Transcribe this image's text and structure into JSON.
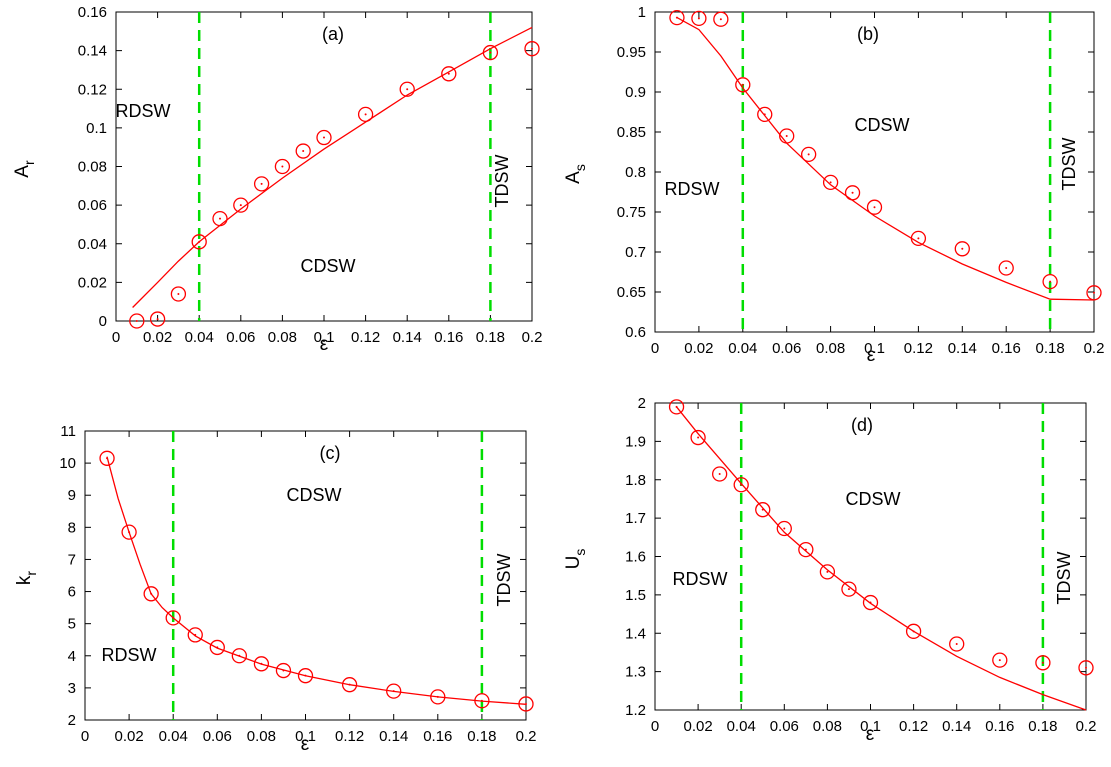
{
  "colors": {
    "data": "#ff0000",
    "boundary": "#00dd00",
    "axis": "#000000"
  },
  "chart_data": [
    {
      "type": "scatter",
      "panel": "(a)",
      "xlabel": "ε",
      "ylabel": "A",
      "ylabel_sub": "r",
      "xlim": [
        0,
        0.2
      ],
      "ylim": [
        0,
        0.16
      ],
      "xticks": [
        "0",
        "0.02",
        "0.04",
        "0.06",
        "0.08",
        "0.1",
        "0.12",
        "0.14",
        "0.16",
        "0.18",
        "0.2"
      ],
      "yticks": [
        "0",
        "0.02",
        "0.04",
        "0.06",
        "0.08",
        "0.1",
        "0.12",
        "0.14",
        "0.16"
      ],
      "boundaries": [
        0.04,
        0.18
      ],
      "regions": [
        {
          "label": "RDSW",
          "x": 0.02,
          "y": 0.1,
          "vertical": false
        },
        {
          "label": "CDSW",
          "x": 0.11,
          "y": 0.053,
          "vertical": false
        },
        {
          "label": "TDSW",
          "x": 0.19,
          "y": 0.094,
          "vertical": true
        }
      ],
      "series": [
        {
          "marker": "circle-dot",
          "x": [
            0.01,
            0.02,
            0.03,
            0.04,
            0.05,
            0.06,
            0.07,
            0.08,
            0.09,
            0.1,
            0.12,
            0.14,
            0.16,
            0.18,
            0.2
          ],
          "y": [
            0.0,
            0.001,
            0.014,
            0.041,
            0.053,
            0.06,
            0.071,
            0.08,
            0.088,
            0.095,
            0.107,
            0.12,
            0.128,
            0.139,
            0.141
          ]
        },
        {
          "marker": "line",
          "x": [
            0.008,
            0.02,
            0.03,
            0.04,
            0.06,
            0.08,
            0.1,
            0.12,
            0.14,
            0.16,
            0.18,
            0.2
          ],
          "y": [
            0.007,
            0.02,
            0.031,
            0.041,
            0.058,
            0.074,
            0.089,
            0.103,
            0.117,
            0.129,
            0.141,
            0.152
          ]
        }
      ]
    },
    {
      "type": "scatter",
      "panel": "(b)",
      "xlabel": "ε",
      "ylabel": "A",
      "ylabel_sub": "s",
      "xlim": [
        0,
        0.2
      ],
      "ylim": [
        0.6,
        1
      ],
      "xticks": [
        "0",
        "0.02",
        "0.04",
        "0.06",
        "0.08",
        "0.1",
        "0.12",
        "0.14",
        "0.16",
        "0.18",
        "0.2"
      ],
      "yticks": [
        "0.6",
        "0.65",
        "0.7",
        "0.75",
        "0.8",
        "0.85",
        "0.9",
        "0.95",
        "1"
      ],
      "boundaries": [
        0.04,
        0.18
      ],
      "regions": [
        {
          "label": "RDSW",
          "x": 0.015,
          "y": 0.778,
          "vertical": false
        },
        {
          "label": "CDSW",
          "x": 0.105,
          "y": 0.862,
          "vertical": false
        },
        {
          "label": "TDSW",
          "x": 0.193,
          "y": 0.818,
          "vertical": true
        }
      ],
      "series": [
        {
          "marker": "circle-dot",
          "x": [
            0.01,
            0.02,
            0.03,
            0.04,
            0.05,
            0.06,
            0.07,
            0.08,
            0.09,
            0.1,
            0.12,
            0.14,
            0.16,
            0.18,
            0.2
          ],
          "y": [
            0.993,
            0.992,
            0.991,
            0.909,
            0.872,
            0.845,
            0.822,
            0.787,
            0.774,
            0.756,
            0.717,
            0.704,
            0.68,
            0.663,
            0.649
          ]
        },
        {
          "marker": "line",
          "x": [
            0.01,
            0.02,
            0.03,
            0.04,
            0.06,
            0.08,
            0.1,
            0.12,
            0.14,
            0.16,
            0.18,
            0.2
          ],
          "y": [
            0.993,
            0.978,
            0.945,
            0.905,
            0.836,
            0.784,
            0.745,
            0.712,
            0.685,
            0.662,
            0.641,
            0.64
          ]
        }
      ]
    },
    {
      "type": "scatter",
      "panel": "(c)",
      "xlabel": "ε",
      "ylabel": "k",
      "ylabel_sub": "r",
      "xlim": [
        0,
        0.2
      ],
      "ylim": [
        2,
        11
      ],
      "xticks": [
        "0",
        "0.02",
        "0.04",
        "0.06",
        "0.08",
        "0.1",
        "0.12",
        "0.14",
        "0.16",
        "0.18",
        "0.2"
      ],
      "yticks": [
        "2",
        "3",
        "4",
        "5",
        "6",
        "7",
        "8",
        "9",
        "10",
        "11"
      ],
      "boundaries": [
        0.04,
        0.18
      ],
      "regions": [
        {
          "label": "RDSW",
          "x": 0.019,
          "y": 4.0,
          "vertical": false
        },
        {
          "label": "CDSW",
          "x": 0.11,
          "y": 8.5,
          "vertical": false
        },
        {
          "label": "TDSW",
          "x": 0.188,
          "y": 5.0,
          "vertical": true
        }
      ],
      "series": [
        {
          "marker": "circle-dot",
          "x": [
            0.01,
            0.02,
            0.03,
            0.04,
            0.05,
            0.06,
            0.07,
            0.08,
            0.09,
            0.1,
            0.12,
            0.14,
            0.16,
            0.18,
            0.2
          ],
          "y": [
            10.15,
            7.85,
            5.93,
            5.18,
            4.65,
            4.26,
            4.0,
            3.75,
            3.54,
            3.38,
            3.1,
            2.9,
            2.72,
            2.6,
            2.5
          ]
        },
        {
          "marker": "line",
          "x": [
            0.01,
            0.015,
            0.02,
            0.025,
            0.03,
            0.035,
            0.04,
            0.05,
            0.06,
            0.08,
            0.1,
            0.12,
            0.14,
            0.16,
            0.18,
            0.2
          ],
          "y": [
            10.2,
            8.9,
            7.85,
            6.85,
            5.93,
            5.5,
            5.18,
            4.62,
            4.24,
            3.74,
            3.38,
            3.1,
            2.89,
            2.72,
            2.59,
            2.49
          ]
        }
      ]
    },
    {
      "type": "scatter",
      "panel": "(d)",
      "xlabel": "ε",
      "ylabel": "U",
      "ylabel_sub": "s",
      "xlim": [
        0,
        0.2
      ],
      "ylim": [
        1.2,
        2
      ],
      "xticks": [
        "0",
        "0.02",
        "0.04",
        "0.06",
        "0.08",
        "0.1",
        "0.12",
        "0.14",
        "0.16",
        "0.18",
        "0.2"
      ],
      "yticks": [
        "1.2",
        "1.3",
        "1.4",
        "1.5",
        "1.6",
        "1.7",
        "1.8",
        "1.9",
        "2"
      ],
      "boundaries": [
        0.04,
        0.18
      ],
      "regions": [
        {
          "label": "RDSW",
          "x": 0.019,
          "y": 1.545,
          "vertical": false
        },
        {
          "label": "CDSW",
          "x": 0.11,
          "y": 1.73,
          "vertical": false
        },
        {
          "label": "TDSW",
          "x": 0.193,
          "y": 1.6,
          "vertical": true
        }
      ],
      "series": [
        {
          "marker": "circle-dot",
          "x": [
            0.01,
            0.02,
            0.03,
            0.04,
            0.05,
            0.06,
            0.07,
            0.08,
            0.09,
            0.1,
            0.12,
            0.14,
            0.16,
            0.18,
            0.2
          ],
          "y": [
            1.99,
            1.91,
            1.815,
            1.787,
            1.722,
            1.673,
            1.618,
            1.56,
            1.515,
            1.48,
            1.405,
            1.372,
            1.33,
            1.323,
            1.31
          ]
        },
        {
          "marker": "line",
          "x": [
            0.01,
            0.02,
            0.03,
            0.04,
            0.06,
            0.08,
            0.1,
            0.12,
            0.14,
            0.16,
            0.18,
            0.2
          ],
          "y": [
            1.99,
            1.92,
            1.855,
            1.79,
            1.663,
            1.565,
            1.478,
            1.405,
            1.34,
            1.285,
            1.24,
            1.2
          ]
        }
      ]
    }
  ]
}
